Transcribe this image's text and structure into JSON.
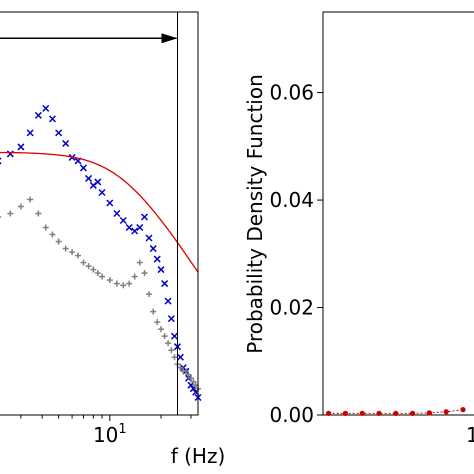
{
  "chart_data": [
    {
      "type": "scatter",
      "title": "",
      "xlabel": "f (Hz)",
      "ylabel": "",
      "xscale": "log",
      "xlim": [
        2.2,
        33
      ],
      "ylim_log": [
        -2.05,
        0.25
      ],
      "x_tick_major": [
        {
          "value": 10,
          "base": "10",
          "exp": "1"
        }
      ],
      "x_minor_ticks": [
        3,
        4,
        5,
        6,
        7,
        8,
        9,
        20,
        30
      ],
      "vertical_line_x": 25,
      "arrow": {
        "from_x": 2.2,
        "to_x": 25,
        "y_log": 0.1
      },
      "series": [
        {
          "color": "#0000cc",
          "marker": "x",
          "x": [
            2.2,
            2.6,
            3.0,
            3.4,
            3.8,
            4.2,
            4.6,
            5.0,
            5.5,
            6.0,
            6.5,
            7.0,
            7.5,
            8.0,
            8.5,
            9.0,
            10,
            11,
            12,
            13,
            14,
            15,
            16,
            17,
            18,
            19,
            20,
            21,
            22,
            23,
            24,
            25,
            26,
            27,
            28,
            29,
            30,
            31,
            32,
            33
          ],
          "y_log": [
            -0.6,
            -0.56,
            -0.52,
            -0.44,
            -0.34,
            -0.3,
            -0.36,
            -0.44,
            -0.5,
            -0.58,
            -0.6,
            -0.64,
            -0.7,
            -0.74,
            -0.72,
            -0.78,
            -0.84,
            -0.9,
            -0.94,
            -0.98,
            -1.0,
            -0.98,
            -0.92,
            -1.04,
            -1.1,
            -1.16,
            -1.22,
            -1.3,
            -1.4,
            -1.5,
            -1.6,
            -1.66,
            -1.72,
            -1.78,
            -1.8,
            -1.84,
            -1.88,
            -1.9,
            -1.92,
            -1.95
          ]
        },
        {
          "color": "#808080",
          "marker": "+",
          "x": [
            2.2,
            2.6,
            3.0,
            3.4,
            3.8,
            4.2,
            4.6,
            5.0,
            5.5,
            6.0,
            6.5,
            7.0,
            7.5,
            8.0,
            8.5,
            9.0,
            10,
            11,
            12,
            13,
            14,
            15,
            16,
            17,
            18,
            19,
            20,
            21,
            22,
            23,
            24,
            25,
            26,
            27,
            28,
            29,
            30,
            31,
            32,
            33
          ],
          "y_log": [
            -0.92,
            -0.9,
            -0.86,
            -0.82,
            -0.9,
            -0.98,
            -1.02,
            -1.06,
            -1.1,
            -1.12,
            -1.14,
            -1.18,
            -1.2,
            -1.22,
            -1.24,
            -1.26,
            -1.28,
            -1.3,
            -1.31,
            -1.3,
            -1.26,
            -1.18,
            -1.24,
            -1.36,
            -1.46,
            -1.52,
            -1.56,
            -1.6,
            -1.64,
            -1.68,
            -1.72,
            -1.76,
            -1.78,
            -1.8,
            -1.8,
            -1.82,
            -1.84,
            -1.86,
            -1.88,
            -1.9
          ]
        }
      ],
      "fit_curve": {
        "color": "#e00000",
        "x_min": 2.2,
        "x_max": 33,
        "k": 0.000625
      }
    },
    {
      "type": "scatter",
      "title": "",
      "xlabel": "",
      "ylabel": "Probability Density Function",
      "ylim": [
        0,
        0.075
      ],
      "y_ticks": [
        "0.00",
        "0.02",
        "0.04",
        "0.06"
      ],
      "series": [
        {
          "color": "#cc0000",
          "marker": "o",
          "x": [
            0.02,
            0.08,
            0.14,
            0.2,
            0.26,
            0.32,
            0.38,
            0.44,
            0.5
          ],
          "y": [
            0.0003,
            0.0003,
            0.0003,
            0.0003,
            0.0003,
            0.0003,
            0.0004,
            0.0006,
            0.001
          ]
        }
      ],
      "partial_tick_text": "1"
    }
  ]
}
